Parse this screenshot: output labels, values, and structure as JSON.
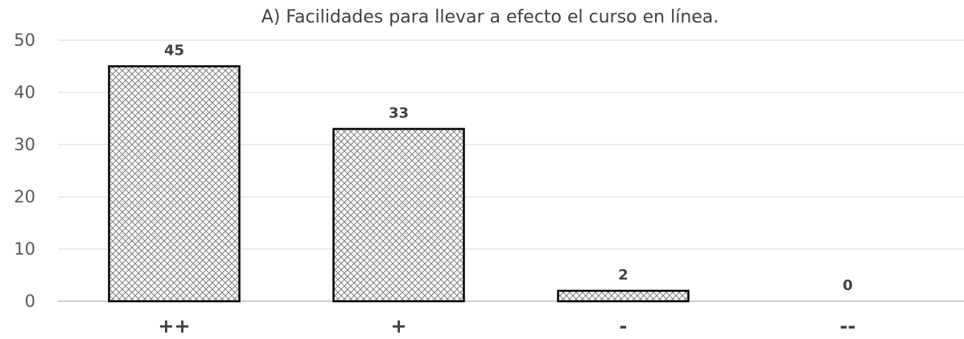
{
  "chart_data": {
    "type": "bar",
    "title": "A) Facilidades para llevar a efecto el curso en línea.",
    "categories": [
      "++",
      "+",
      "-",
      "--"
    ],
    "values": [
      45,
      33,
      2,
      0
    ],
    "data_labels": [
      "45",
      "33",
      "2",
      "0"
    ],
    "ylim": [
      0,
      50
    ],
    "yticks": [
      0,
      10,
      20,
      30,
      40,
      50
    ],
    "xlabel": "",
    "ylabel": "",
    "grid": true,
    "legend": "none",
    "bar_fill": "crosshatch pattern",
    "colors": {
      "bar_outline": "#000000",
      "hatch": "#7f7f7f",
      "grid": "#d9d9d9",
      "text": "#404040"
    }
  }
}
